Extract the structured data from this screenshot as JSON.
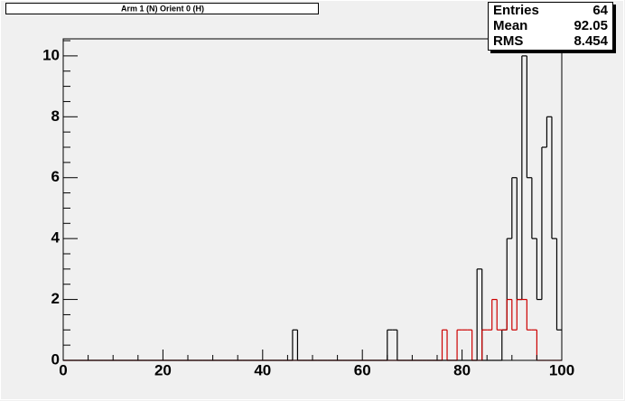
{
  "chart_data": {
    "type": "histogram",
    "title": "Arm 1 (N) Orient 0 (H)",
    "bins": [
      0,
      1,
      2,
      3,
      4,
      5,
      6,
      7,
      8,
      9,
      10,
      11,
      12,
      13,
      14,
      15,
      16,
      17,
      18,
      19,
      20,
      21,
      22,
      23,
      24,
      25,
      26,
      27,
      28,
      29,
      30,
      31,
      32,
      33,
      34,
      35,
      36,
      37,
      38,
      39,
      40,
      41,
      42,
      43,
      44,
      45,
      46,
      47,
      48,
      49,
      50,
      51,
      52,
      53,
      54,
      55,
      56,
      57,
      58,
      59,
      60,
      61,
      62,
      63,
      64,
      65,
      66,
      67,
      68,
      69,
      70,
      71,
      72,
      73,
      74,
      75,
      76,
      77,
      78,
      79,
      80,
      81,
      82,
      83,
      84,
      85,
      86,
      87,
      88,
      89,
      90,
      91,
      92,
      93,
      94,
      95,
      96,
      97,
      98,
      99,
      100
    ],
    "series": [
      {
        "color": "#000000",
        "values": [
          0,
          0,
          0,
          0,
          0,
          0,
          0,
          0,
          0,
          0,
          0,
          0,
          0,
          0,
          0,
          0,
          0,
          0,
          0,
          0,
          0,
          0,
          0,
          0,
          0,
          0,
          0,
          0,
          0,
          0,
          0,
          0,
          0,
          0,
          0,
          0,
          0,
          0,
          0,
          0,
          0,
          0,
          0,
          0,
          0,
          0,
          1,
          0,
          0,
          0,
          0,
          0,
          0,
          0,
          0,
          0,
          0,
          0,
          0,
          0,
          0,
          0,
          0,
          0,
          0,
          1,
          1,
          0,
          0,
          0,
          0,
          0,
          0,
          0,
          0,
          0,
          0,
          0,
          0,
          0,
          0,
          0,
          0,
          3,
          0,
          0,
          0,
          0,
          1,
          4,
          6,
          2,
          10,
          6,
          4,
          2,
          7,
          8,
          4,
          1
        ]
      },
      {
        "color": "#cc0000",
        "values": [
          0,
          0,
          0,
          0,
          0,
          0,
          0,
          0,
          0,
          0,
          0,
          0,
          0,
          0,
          0,
          0,
          0,
          0,
          0,
          0,
          0,
          0,
          0,
          0,
          0,
          0,
          0,
          0,
          0,
          0,
          0,
          0,
          0,
          0,
          0,
          0,
          0,
          0,
          0,
          0,
          0,
          0,
          0,
          0,
          0,
          0,
          0,
          0,
          0,
          0,
          0,
          0,
          0,
          0,
          0,
          0,
          0,
          0,
          0,
          0,
          0,
          0,
          0,
          0,
          0,
          0,
          0,
          0,
          0,
          0,
          0,
          0,
          0,
          0,
          0,
          0,
          1,
          0,
          0,
          1,
          1,
          1,
          0,
          0,
          1,
          1,
          2,
          1,
          1,
          2,
          1,
          2,
          2,
          1,
          1,
          0,
          0,
          0,
          0,
          0
        ]
      }
    ],
    "xlim": [
      0,
      100
    ],
    "xticks": [
      0,
      20,
      40,
      60,
      80,
      100
    ],
    "xminorticks": [
      5,
      10,
      15,
      25,
      30,
      35,
      45,
      50,
      55,
      65,
      70,
      75,
      85,
      90,
      95
    ],
    "ylim": [
      0,
      10.56
    ],
    "yticks": [
      0,
      2,
      4,
      6,
      8,
      10
    ],
    "yminorticks": [
      0.5,
      1,
      1.5,
      2.5,
      3,
      3.5,
      4.5,
      5,
      5.5,
      6.5,
      7,
      7.5,
      8.5,
      9,
      9.5,
      10.5
    ],
    "stats": [
      {
        "label": "Entries",
        "value": 64
      },
      {
        "label": "Mean",
        "value": 92.05
      },
      {
        "label": "RMS",
        "value": 8.454
      }
    ]
  }
}
